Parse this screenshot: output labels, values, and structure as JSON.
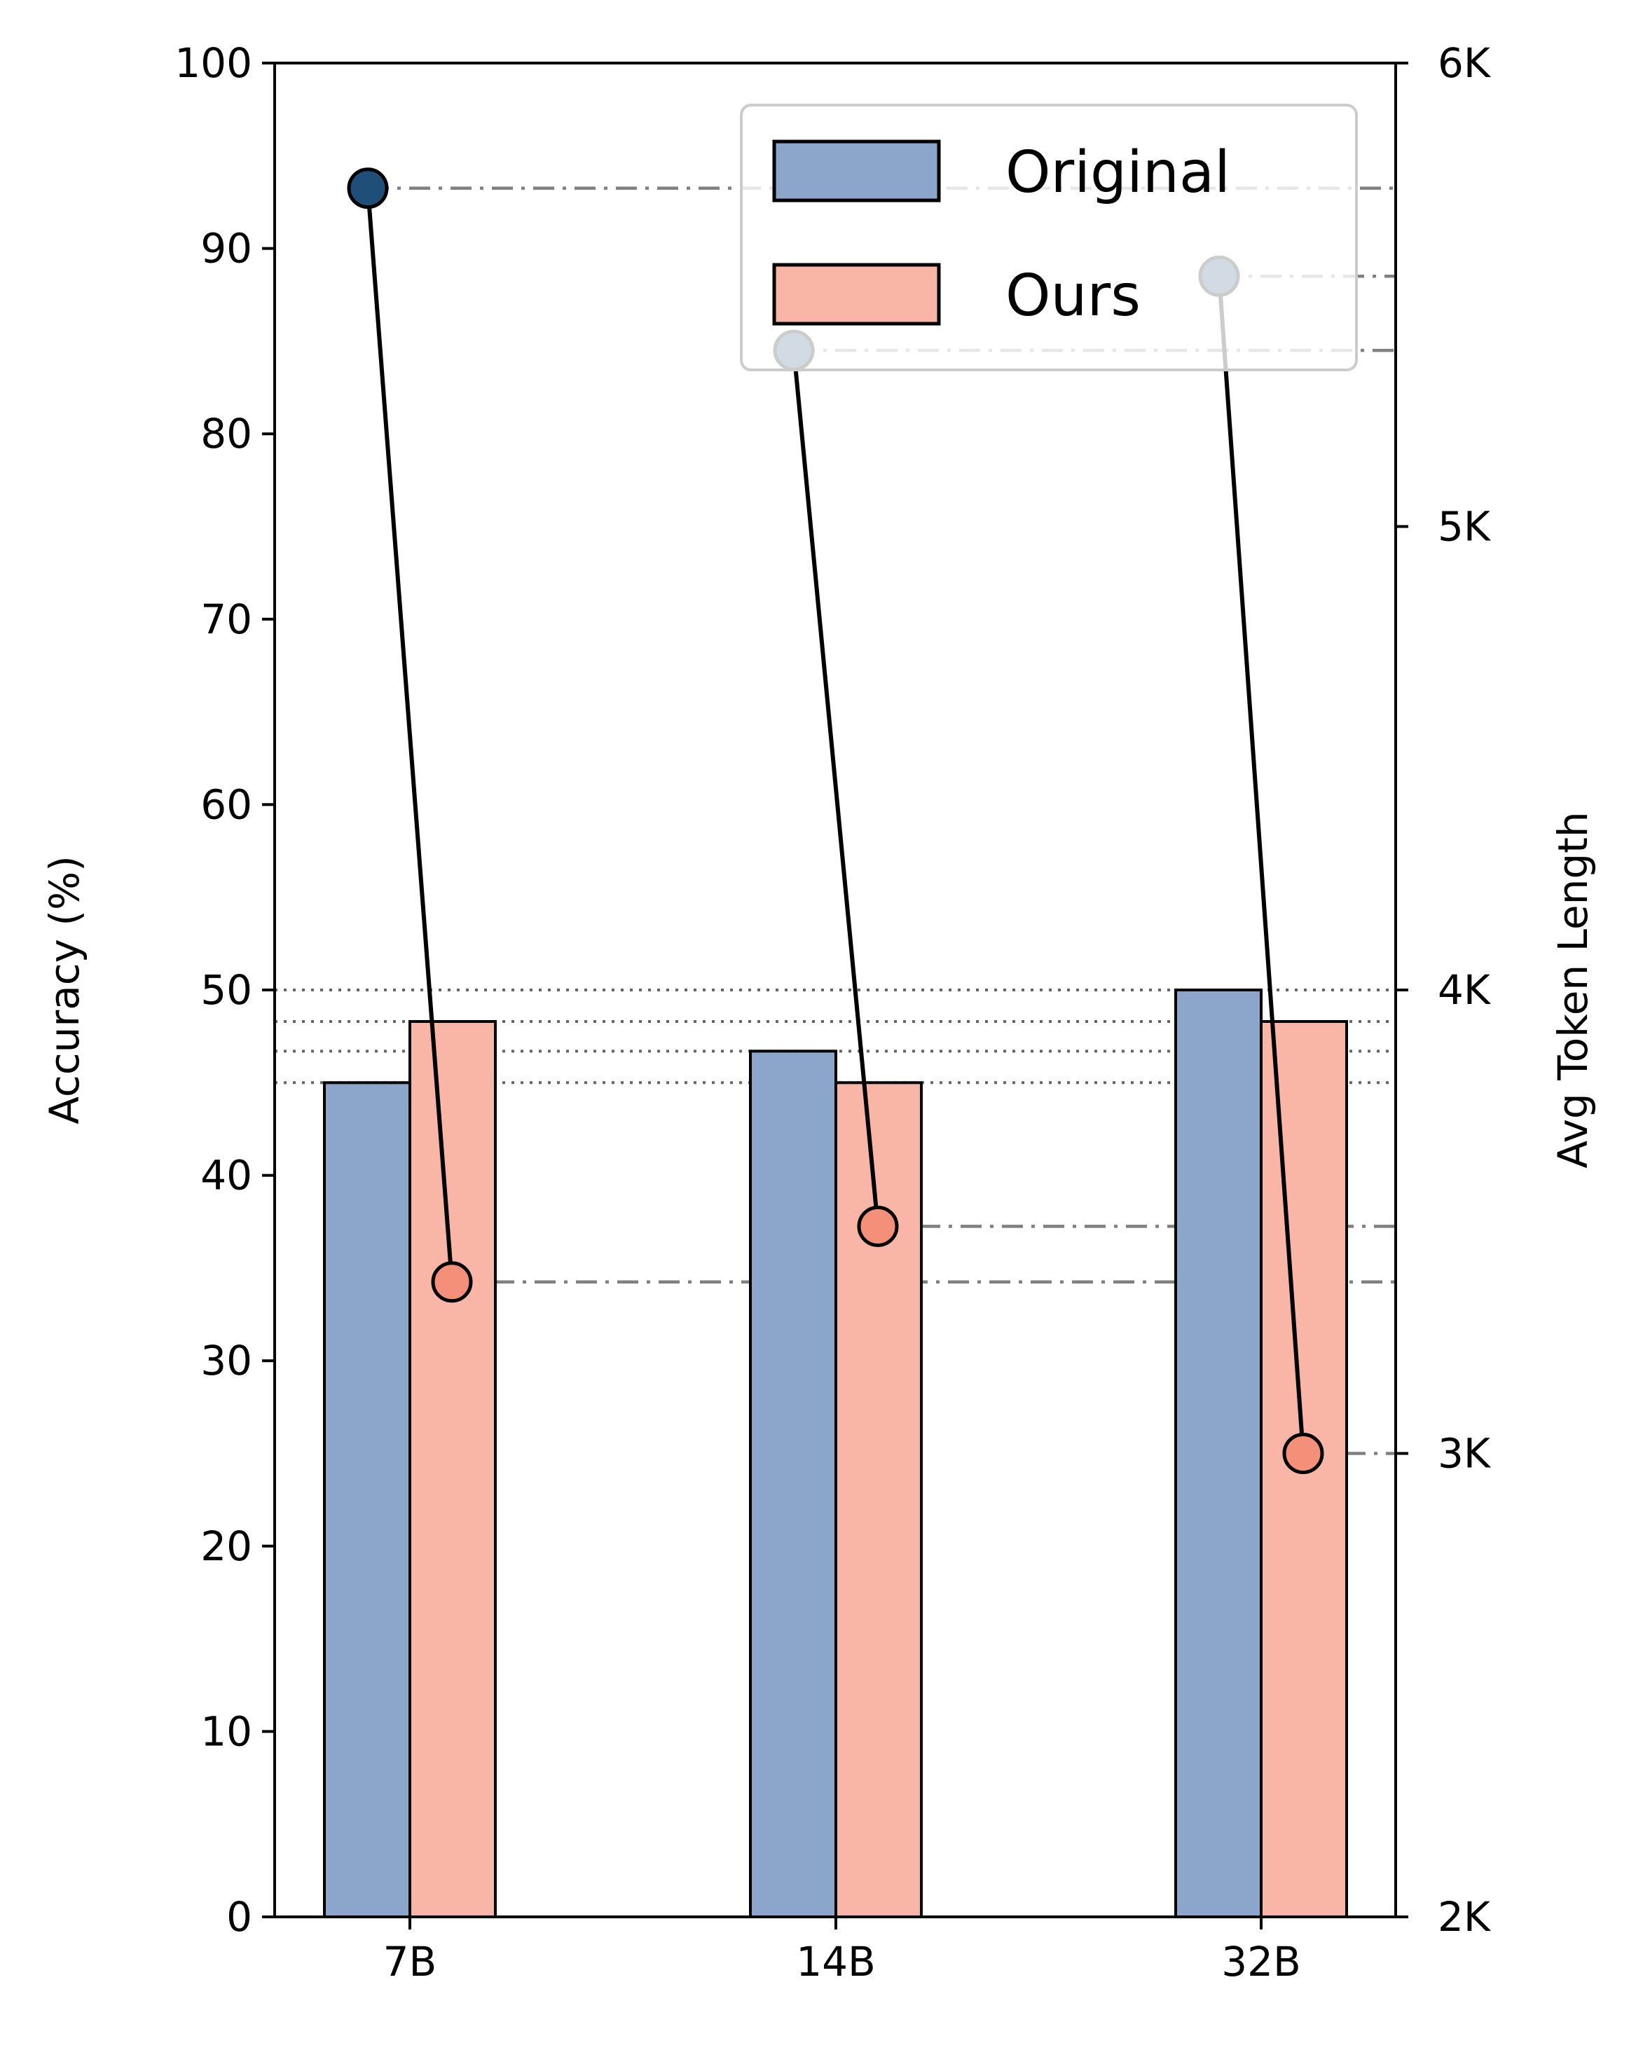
{
  "chart_data": {
    "type": "bar",
    "categories": [
      "7B",
      "14B",
      "32B"
    ],
    "series": [
      {
        "name": "Original",
        "color": "#8ca5cb",
        "values": [
          45.0,
          46.7,
          50.0
        ]
      },
      {
        "name": "Ours",
        "color": "#f9b6a6",
        "values": [
          48.3,
          45.0,
          48.3
        ]
      }
    ],
    "token_series": [
      {
        "name": "Original",
        "color": "#1f4e79",
        "values": [
          5730,
          5380,
          5540
        ]
      },
      {
        "name": "Ours",
        "color": "#f4907a",
        "values": [
          3370,
          3490,
          3000
        ]
      }
    ],
    "ylabel": "Accuracy (%)",
    "y2label": "Avg Token Length",
    "ylim": [
      0,
      100
    ],
    "y2lim": [
      2000,
      6000
    ],
    "yticks": [
      "0",
      "10",
      "20",
      "30",
      "40",
      "50",
      "60",
      "70",
      "80",
      "90",
      "100"
    ],
    "y2ticks": [
      {
        "value": 2000,
        "label": "2K"
      },
      {
        "value": 3000,
        "label": "3K"
      },
      {
        "value": 4000,
        "label": "4K"
      },
      {
        "value": 5000,
        "label": "5K"
      },
      {
        "value": 6000,
        "label": "6K"
      }
    ],
    "legend_position": "top-right",
    "grid": false
  }
}
